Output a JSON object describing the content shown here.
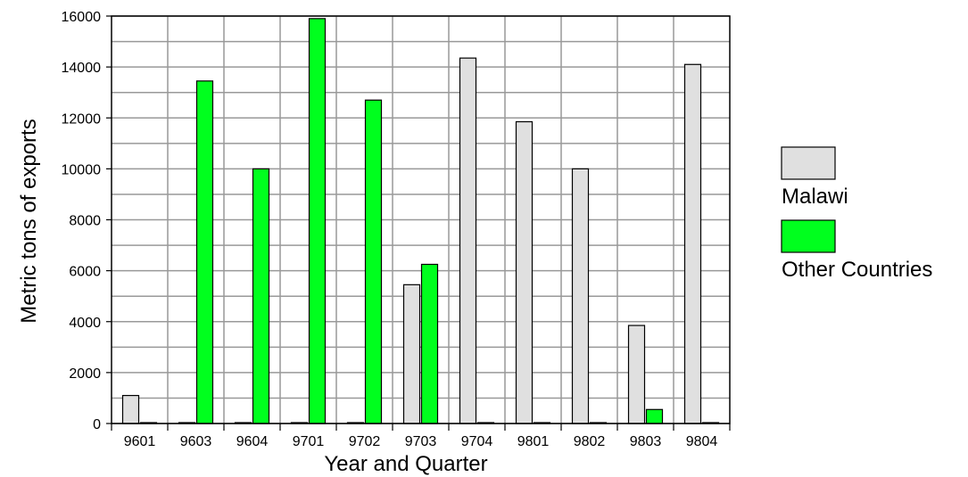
{
  "chart_data": {
    "type": "bar",
    "title": "",
    "xlabel": "Year and Quarter",
    "ylabel": "Metric tons of exports",
    "categories": [
      "9601",
      "9603",
      "9604",
      "9701",
      "9702",
      "9703",
      "9704",
      "9801",
      "9802",
      "9803",
      "9804"
    ],
    "series": [
      {
        "name": "Malawi",
        "color": "#e0e0e0",
        "values": [
          1100,
          0,
          0,
          0,
          0,
          5450,
          14350,
          11850,
          10000,
          3850,
          14100
        ]
      },
      {
        "name": "Other Countries",
        "color": "#00ff1e",
        "values": [
          0,
          13450,
          10000,
          15900,
          12700,
          6250,
          0,
          0,
          0,
          550,
          0
        ]
      }
    ],
    "ylim": [
      0,
      16000
    ],
    "yticks": [
      0,
      2000,
      4000,
      6000,
      8000,
      10000,
      12000,
      14000,
      16000
    ],
    "grid": true,
    "legend_position": "right"
  }
}
